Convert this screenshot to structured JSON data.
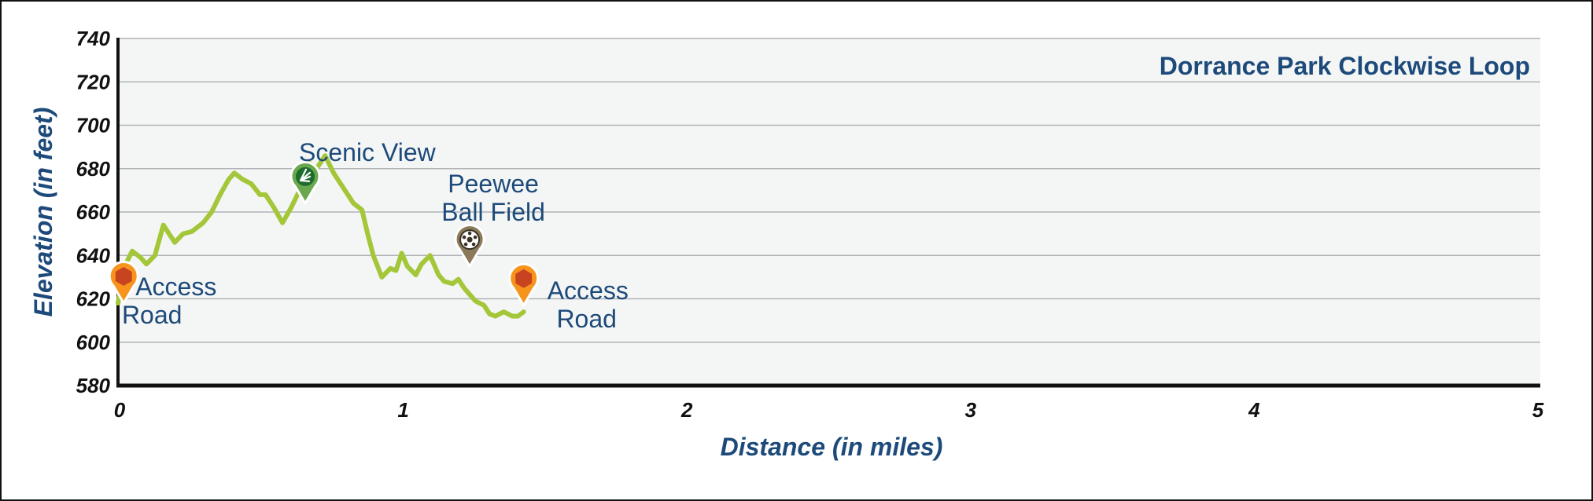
{
  "chart_data": {
    "type": "area",
    "title": "Dorrance Park Clockwise Loop",
    "xlabel": "Distance (in miles)",
    "ylabel": "Elevation (in feet)",
    "xlim": [
      0,
      5
    ],
    "ylim": [
      580,
      740
    ],
    "x_ticks": [
      0,
      1,
      2,
      3,
      4,
      5
    ],
    "y_ticks": [
      580,
      600,
      620,
      640,
      660,
      680,
      700,
      720,
      740
    ],
    "grid": true,
    "colors": {
      "line": "#a4c639",
      "plot_background": "#f4f6f5",
      "grid": "#b0b3b6",
      "axis": "#111111",
      "text": "#1d4a7a"
    },
    "series": [
      {
        "x": [
          0,
          0.02,
          0.05,
          0.08,
          0.1,
          0.13,
          0.16,
          0.2,
          0.23,
          0.26,
          0.3,
          0.33,
          0.36,
          0.39,
          0.41,
          0.44,
          0.47,
          0.5,
          0.52,
          0.55,
          0.58,
          0.61,
          0.64,
          0.67,
          0.7,
          0.73,
          0.76,
          0.8,
          0.83,
          0.86,
          0.88,
          0.9,
          0.93,
          0.96,
          0.98,
          1,
          1.02,
          1.05,
          1.07,
          1.1,
          1.13,
          1.15,
          1.18,
          1.2,
          1.22,
          1.24,
          1.26,
          1.29,
          1.31,
          1.33,
          1.36,
          1.39,
          1.41,
          1.43
        ],
        "y": [
          618,
          634,
          642,
          639,
          636,
          640,
          654,
          646,
          650,
          651,
          655,
          660,
          668,
          675,
          678,
          675,
          673,
          668,
          668,
          662,
          655,
          662,
          670,
          683,
          680,
          686,
          678,
          670,
          664,
          661,
          650,
          640,
          630,
          634,
          633,
          641,
          635,
          631,
          636,
          640,
          631,
          628,
          627,
          629,
          625,
          622,
          619,
          617,
          613,
          612,
          614,
          612,
          612,
          614
        ]
      }
    ],
    "waypoints": [
      {
        "name": "Access Road",
        "lines": [
          "Access",
          "Road"
        ],
        "x": 0.02,
        "y": 618,
        "icon": "trailhead-marker-icon",
        "color": "#f7941d"
      },
      {
        "name": "Scenic View",
        "lines": [
          "Scenic View"
        ],
        "x": 0.66,
        "y": 664,
        "icon": "scenic-view-marker-icon",
        "color": "#6aa84f"
      },
      {
        "name": "Peewee Ball Field",
        "lines": [
          "Peewee",
          "Ball Field"
        ],
        "x": 1.24,
        "y": 635,
        "icon": "ball-field-marker-icon",
        "color": "#8a7a5a"
      },
      {
        "name": "Access Road",
        "lines": [
          "Access",
          "Road"
        ],
        "x": 1.43,
        "y": 617,
        "icon": "trailhead-marker-icon",
        "color": "#f7941d"
      }
    ]
  }
}
